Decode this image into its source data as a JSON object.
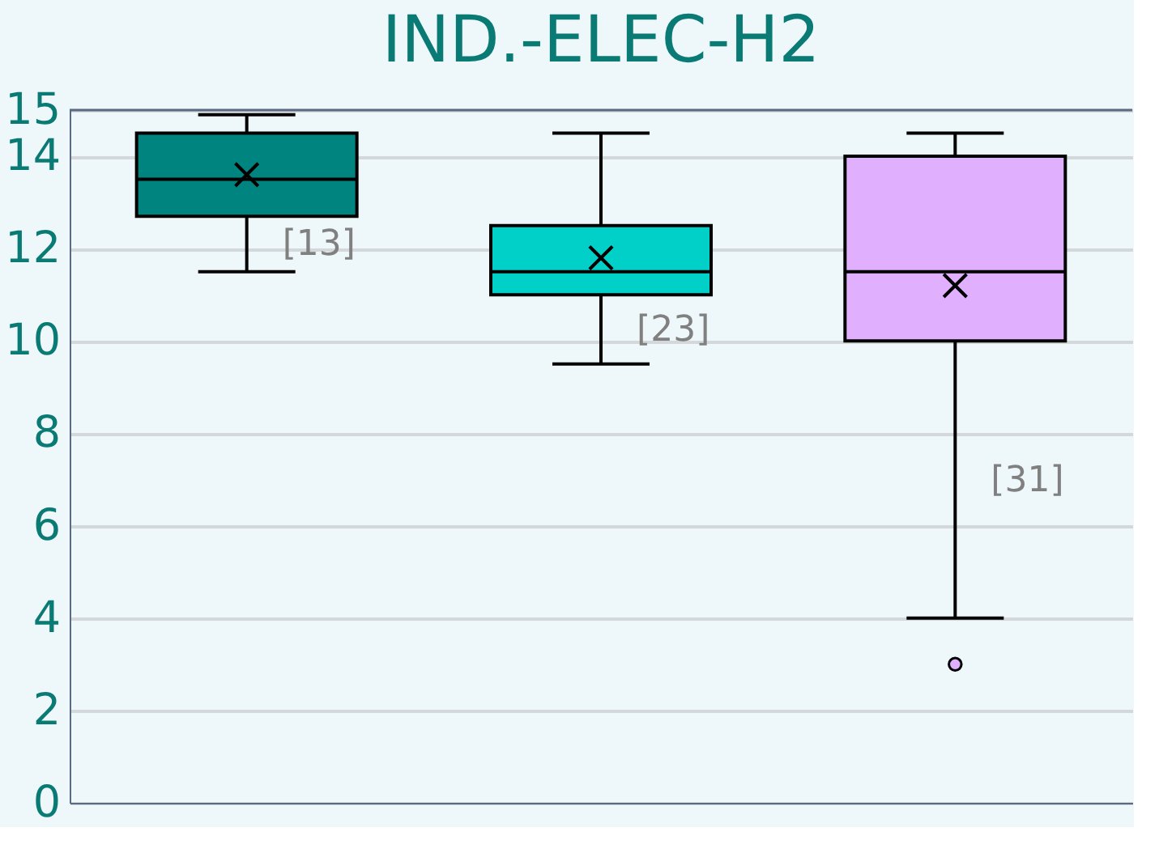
{
  "chart_data": {
    "type": "box",
    "title": "IND.-ELEC-H2",
    "categories": [
      null,
      null,
      null
    ],
    "colors": [
      "#00847f",
      "#00d0c8",
      "#e0b0ff"
    ],
    "boxes": [
      {
        "low": 11.5,
        "q1": 12.7,
        "median": 13.5,
        "q3": 14.5,
        "high": 14.9,
        "mean": 13.6
      },
      {
        "low": 9.5,
        "q1": 11.0,
        "median": 11.5,
        "q3": 12.5,
        "high": 14.5,
        "mean": 11.8
      },
      {
        "low": 4.0,
        "q1": 10.0,
        "median": 11.5,
        "q3": 14.0,
        "high": 14.5,
        "mean": 11.2,
        "outliers": [
          3.0
        ]
      }
    ],
    "annotations": [
      "[13]",
      "[23]",
      "[31]"
    ],
    "ylim": [
      0,
      15
    ],
    "yticks": [
      0,
      2,
      4,
      6,
      8,
      10,
      12,
      14,
      15
    ],
    "grid": "y"
  }
}
